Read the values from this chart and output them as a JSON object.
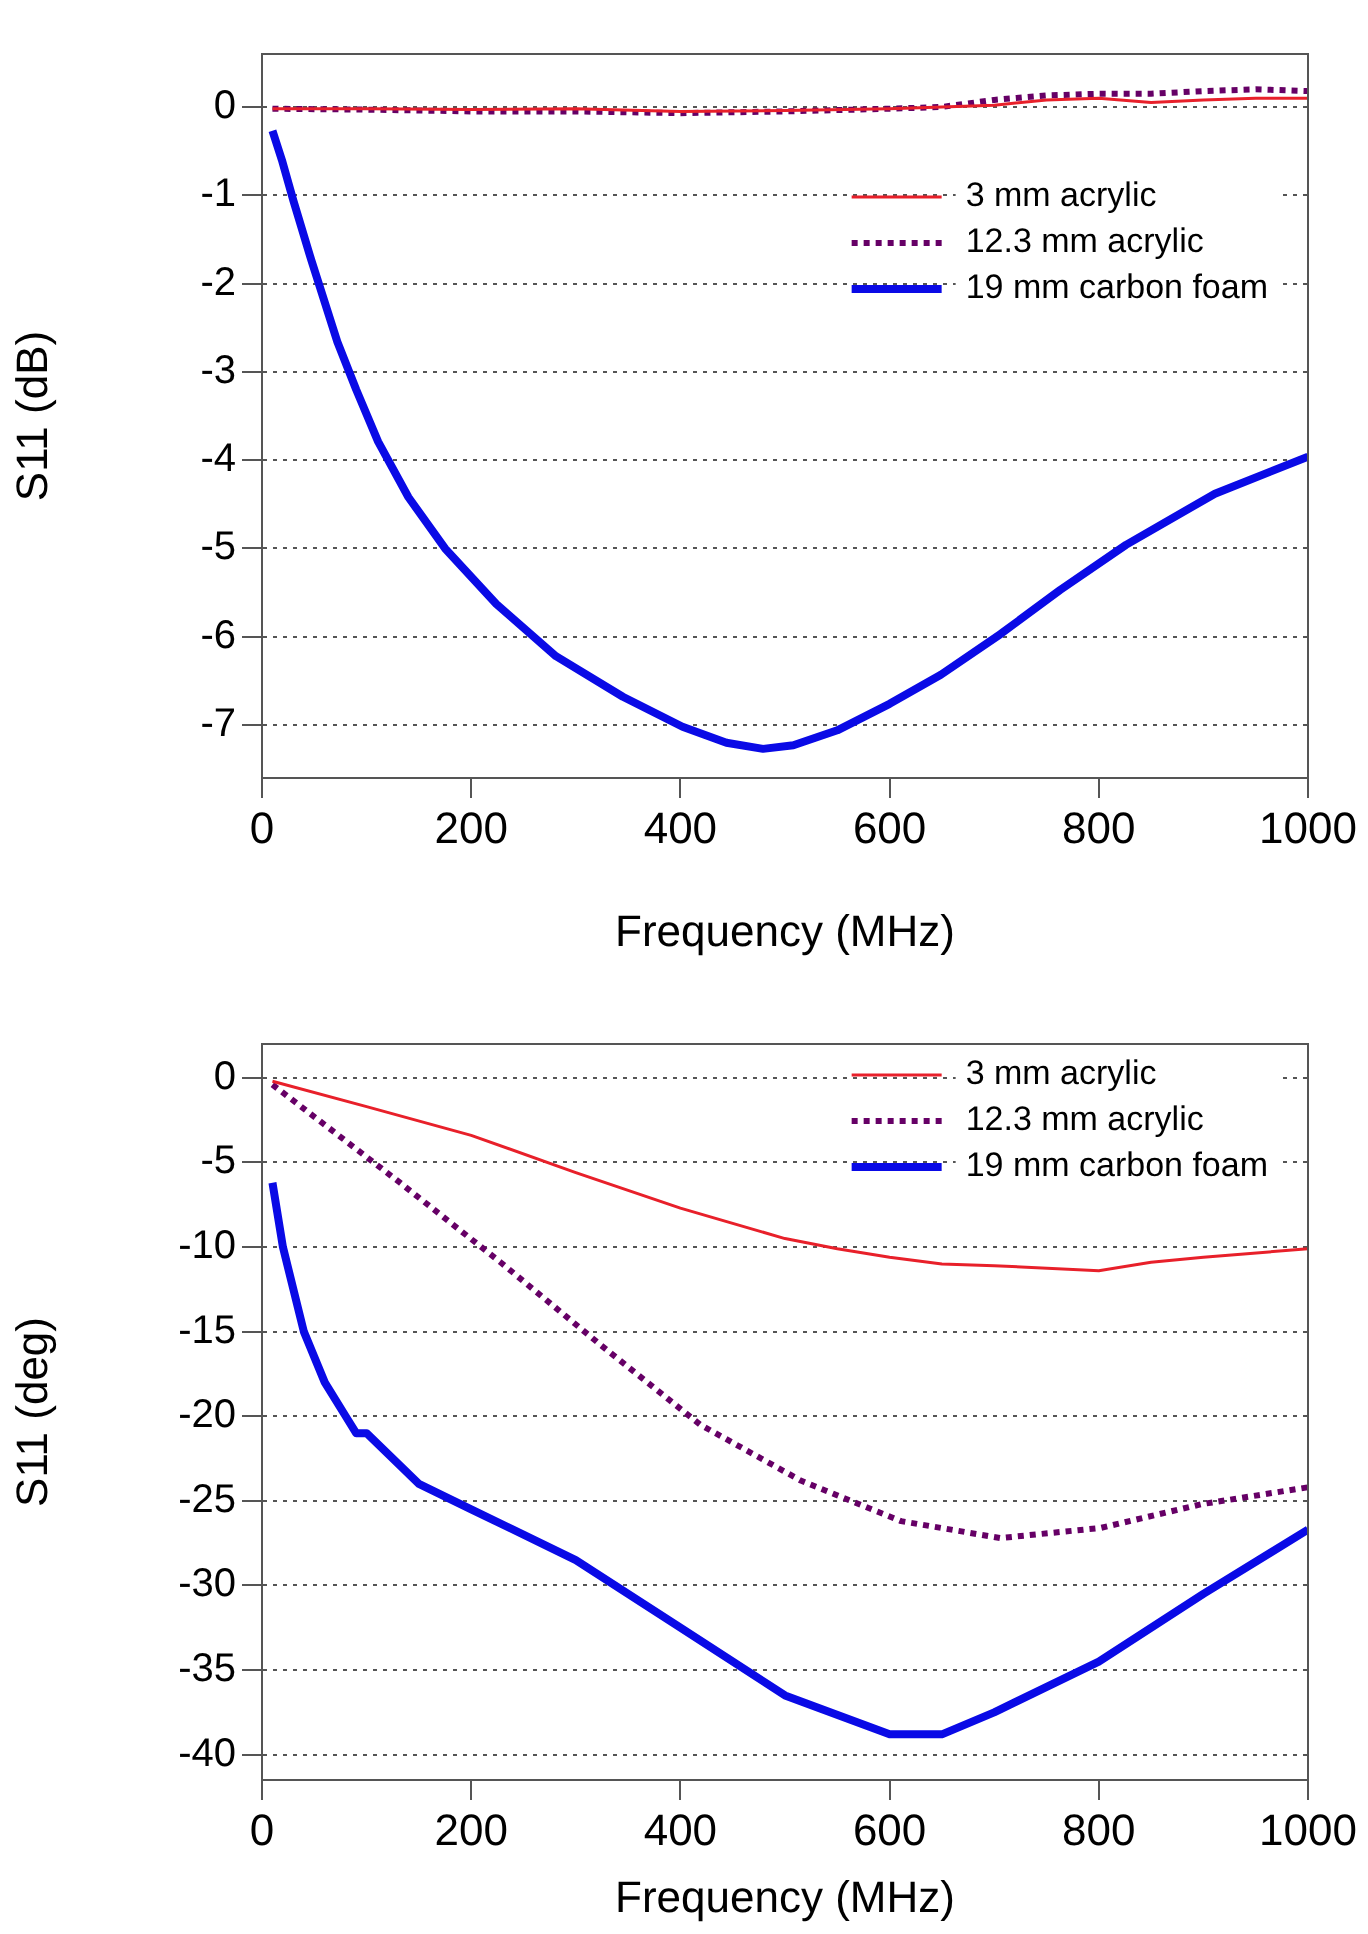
{
  "chart_data": [
    {
      "type": "line",
      "xlabel": "Frequency (MHz)",
      "ylabel": "S11 (dB)",
      "xlim": [
        0,
        1000
      ],
      "xticks": [
        0,
        200,
        400,
        600,
        800,
        1000
      ],
      "ylim": [
        -7.6,
        0.6
      ],
      "yticks": [
        0,
        -1,
        -2,
        -3,
        -4,
        -5,
        -6,
        -7
      ],
      "grid": "y",
      "legend": "top right",
      "marker": "none",
      "series": [
        {
          "name": "3 mm acrylic",
          "color": "#e8202a",
          "line_style": "solid",
          "x": [
            10,
            100,
            200,
            300,
            400,
            500,
            600,
            650,
            700,
            750,
            800,
            850,
            900,
            950,
            1000
          ],
          "values": [
            -0.02,
            -0.02,
            -0.03,
            -0.02,
            -0.05,
            -0.04,
            -0.02,
            0,
            0.02,
            0.08,
            0.1,
            0.05,
            0.08,
            0.1,
            0.1
          ]
        },
        {
          "name": "12.3 mm acrylic",
          "color": "#660066",
          "line_style": "dotted",
          "x": [
            10,
            100,
            200,
            300,
            400,
            500,
            600,
            650,
            700,
            750,
            800,
            850,
            900,
            950,
            1000
          ],
          "values": [
            -0.02,
            -0.03,
            -0.05,
            -0.05,
            -0.07,
            -0.05,
            -0.02,
            0,
            0.08,
            0.13,
            0.15,
            0.15,
            0.18,
            0.2,
            0.18
          ]
        },
        {
          "name": "19 mm carbon foam",
          "color": "#0a0ae6",
          "line_style": "solid",
          "x": [
            10,
            19,
            30,
            47,
            72,
            90,
            111,
            140,
            175,
            224,
            281,
            345,
            402,
            444,
            479,
            508,
            550,
            600,
            649,
            706,
            763,
            826,
            911,
            1000
          ],
          "values": [
            -0.27,
            -0.6,
            -1.06,
            -1.73,
            -2.66,
            -3.2,
            -3.79,
            -4.42,
            -5.0,
            -5.63,
            -6.22,
            -6.68,
            -7.02,
            -7.2,
            -7.27,
            -7.23,
            -7.06,
            -6.76,
            -6.43,
            -5.97,
            -5.47,
            -4.96,
            -4.38,
            -3.96
          ]
        }
      ]
    },
    {
      "type": "line",
      "xlabel": "Frequency (MHz)",
      "ylabel": "S11 (deg)",
      "xlim": [
        0,
        1000
      ],
      "xticks": [
        0,
        200,
        400,
        600,
        800,
        1000
      ],
      "ylim": [
        -41.5,
        2
      ],
      "yticks": [
        0,
        -5,
        -10,
        -15,
        -20,
        -25,
        -30,
        -35,
        -40
      ],
      "grid": "y",
      "legend": "top right",
      "marker": "none",
      "series": [
        {
          "name": "3 mm acrylic",
          "color": "#e8202a",
          "line_style": "solid",
          "x": [
            10,
            100,
            200,
            300,
            400,
            500,
            550,
            600,
            650,
            700,
            800,
            850,
            900,
            1000
          ],
          "values": [
            -0.2,
            -1.7,
            -3.4,
            -5.6,
            -7.7,
            -9.5,
            -10.1,
            -10.6,
            -11.0,
            -11.1,
            -11.4,
            -10.9,
            -10.6,
            -10.1
          ]
        },
        {
          "name": "12.3 mm acrylic",
          "color": "#660066",
          "line_style": "dotted",
          "x": [
            10,
            132,
            228,
            324,
            419,
            515,
            611,
            706,
            802,
            898,
            1000
          ],
          "values": [
            -0.4,
            -6.2,
            -10.9,
            -15.8,
            -20.5,
            -23.8,
            -26.2,
            -27.2,
            -26.6,
            -25.2,
            -24.2
          ]
        },
        {
          "name": "19 mm carbon foam",
          "color": "#0a0ae6",
          "line_style": "solid",
          "x": [
            10,
            20,
            40,
            60,
            80,
            90,
            100,
            150,
            200,
            300,
            400,
            500,
            600,
            650,
            700,
            800,
            900,
            1000
          ],
          "values": [
            -6.2,
            -10,
            -15,
            -18,
            -20,
            -21,
            -21,
            -24,
            -25.5,
            -28.5,
            -32.5,
            -36.5,
            -38.8,
            -38.8,
            -37.5,
            -34.5,
            -30.5,
            -26.7
          ]
        }
      ]
    }
  ]
}
